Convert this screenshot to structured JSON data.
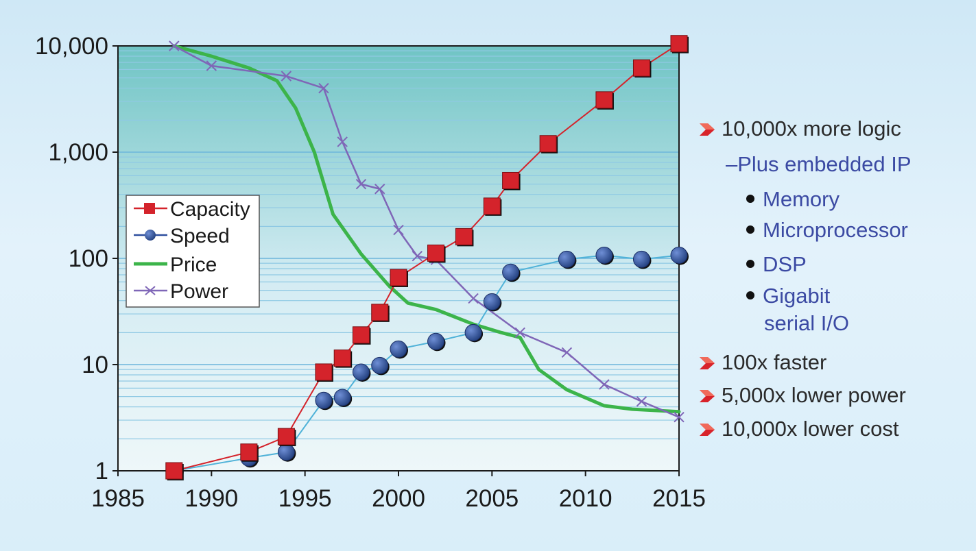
{
  "chart_data": {
    "type": "line",
    "yscale": "log",
    "ylim": [
      1,
      10000
    ],
    "xlim": [
      1985,
      2015
    ],
    "yticks": [
      {
        "value": 1,
        "label": "1"
      },
      {
        "value": 10,
        "label": "10"
      },
      {
        "value": 100,
        "label": "100"
      },
      {
        "value": 1000,
        "label": "1,000"
      },
      {
        "value": 10000,
        "label": "10,000"
      }
    ],
    "xticks": [
      {
        "value": 1985,
        "label": "1985"
      },
      {
        "value": 1990,
        "label": "1990"
      },
      {
        "value": 1995,
        "label": "1995"
      },
      {
        "value": 2000,
        "label": "2000"
      },
      {
        "value": 2005,
        "label": "2005"
      },
      {
        "value": 2010,
        "label": "2010"
      },
      {
        "value": 2015,
        "label": "2015"
      }
    ],
    "grid": true,
    "legend_position": "left-middle",
    "series": [
      {
        "name": "Capacity",
        "color": "#d4232b",
        "marker": "square",
        "points": [
          [
            1988,
            1
          ],
          [
            1992,
            1.5
          ],
          [
            1994,
            2.1
          ],
          [
            1996,
            8.5
          ],
          [
            1997,
            11.5
          ],
          [
            1998,
            19
          ],
          [
            1999,
            31
          ],
          [
            2000,
            66
          ],
          [
            2002,
            112
          ],
          [
            2003.5,
            160
          ],
          [
            2005,
            310
          ],
          [
            2006,
            540
          ],
          [
            2008,
            1200
          ],
          [
            2011,
            3100
          ],
          [
            2013,
            6200
          ],
          [
            2015,
            10500
          ]
        ]
      },
      {
        "name": "Speed",
        "color": "#2e4f9e",
        "line_color": "#4fb2d8",
        "marker": "circle",
        "points": [
          [
            1988,
            1
          ],
          [
            1992,
            1.32
          ],
          [
            1994,
            1.5
          ],
          [
            1996,
            4.6
          ],
          [
            1997,
            4.9
          ],
          [
            1998,
            8.5
          ],
          [
            1999,
            9.8
          ],
          [
            2000,
            14
          ],
          [
            2002,
            16.5
          ],
          [
            2004,
            20
          ],
          [
            2005,
            39
          ],
          [
            2006,
            74
          ],
          [
            2009,
            98
          ],
          [
            2011,
            107
          ],
          [
            2013,
            98
          ],
          [
            2015,
            107
          ]
        ]
      },
      {
        "name": "Price",
        "color": "#3cb44a",
        "marker": "none",
        "points": [
          [
            1988,
            10000
          ],
          [
            1990,
            8000
          ],
          [
            1992,
            6200
          ],
          [
            1993.5,
            4700
          ],
          [
            1994.5,
            2600
          ],
          [
            1995.5,
            1000
          ],
          [
            1996.5,
            260
          ],
          [
            1998,
            110
          ],
          [
            1999.5,
            55
          ],
          [
            2000.5,
            38
          ],
          [
            2002,
            33
          ],
          [
            2004,
            24
          ],
          [
            2005.5,
            20
          ],
          [
            2006.5,
            18
          ],
          [
            2007.5,
            9
          ],
          [
            2009,
            5.8
          ],
          [
            2011,
            4.1
          ],
          [
            2012.5,
            3.8
          ],
          [
            2015,
            3.6
          ]
        ]
      },
      {
        "name": "Power",
        "color": "#7f66b7",
        "marker": "x",
        "points": [
          [
            1988,
            10000
          ],
          [
            1990,
            6500
          ],
          [
            1994,
            5200
          ],
          [
            1996,
            4000
          ],
          [
            1997,
            1250
          ],
          [
            1998,
            500
          ],
          [
            1999,
            450
          ],
          [
            2000,
            185
          ],
          [
            2001,
            105
          ],
          [
            2002,
            97
          ],
          [
            2004,
            42
          ],
          [
            2006.5,
            20
          ],
          [
            2009,
            13
          ],
          [
            2011,
            6.5
          ],
          [
            2013,
            4.5
          ],
          [
            2015,
            3.2
          ]
        ]
      }
    ]
  },
  "bullets": {
    "logic": "10,000x more logic",
    "embedded": "–Plus embedded IP",
    "memory": "Memory",
    "micro": "Microprocessor",
    "dsp": "DSP",
    "gigabit1": "Gigabit",
    "gigabit2": "serial I/O",
    "faster": "100x faster",
    "power": "5,000x lower power",
    "cost": "10,000x lower cost"
  },
  "colors": {
    "bullet_arrow": "#d8232a",
    "sub_text": "#3b4aa3"
  }
}
